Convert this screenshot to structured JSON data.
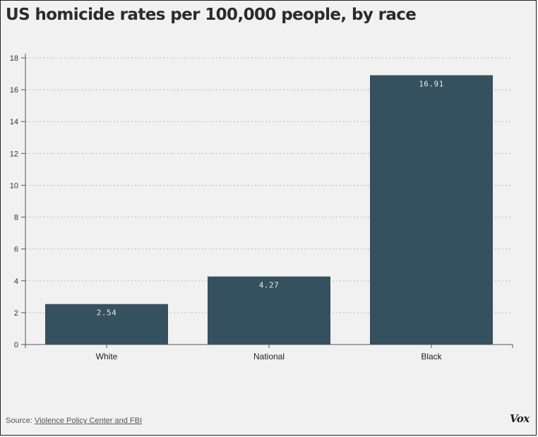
{
  "title": "US homicide rates per 100,000 people, by race",
  "source": {
    "prefix": "Source: ",
    "link_text": "Violence Policy Center and FBI"
  },
  "brand": "Vox",
  "colors": {
    "bar": "#35505e",
    "axis": "#555555",
    "grid": "#bbbbbb",
    "bar_label": "#e4eaed"
  },
  "chart_data": {
    "type": "bar",
    "title": "US homicide rates per 100,000 people, by race",
    "categories": [
      "White",
      "National",
      "Black"
    ],
    "values": [
      2.54,
      4.27,
      16.91
    ],
    "value_labels": [
      "2.54",
      "4.27",
      "16.91"
    ],
    "ylim": [
      0,
      18
    ],
    "yticks": [
      0,
      2,
      4,
      6,
      8,
      10,
      12,
      14,
      16,
      18
    ],
    "grid": true,
    "xlabel": "",
    "ylabel": ""
  }
}
